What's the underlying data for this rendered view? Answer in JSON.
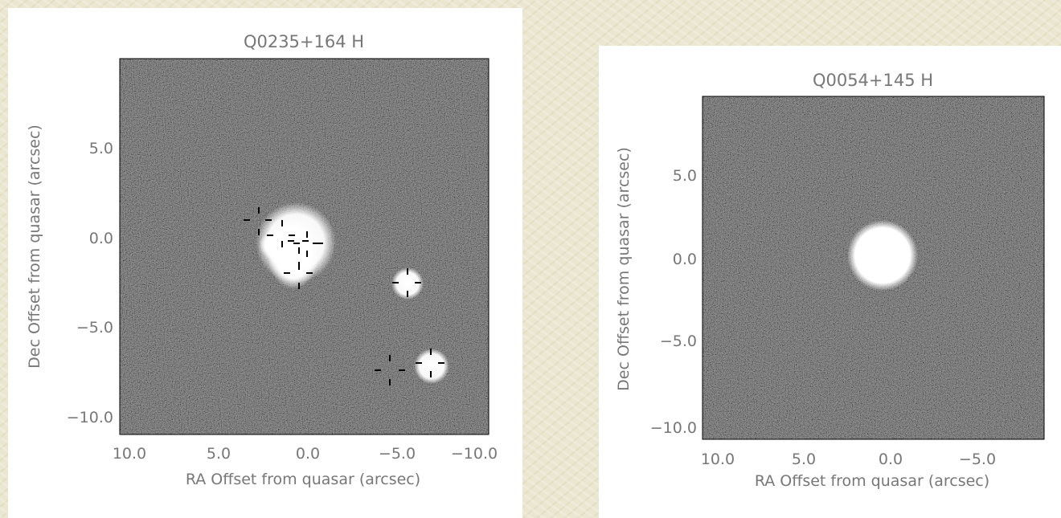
{
  "colors": {
    "background": "#ebe6cf",
    "panel": "#ffffff",
    "image_gray": "#555555",
    "text": "#777777",
    "marker": "#000000"
  },
  "panels": [
    {
      "title": "Q0235+164 H",
      "xlabel": "RA Offset from quasar (arcsec)",
      "ylabel": "Dec Offset from quasar (arcsec)",
      "xticks": [
        "10.0",
        "5.0",
        "0.0",
        "−5.0",
        "−10.0"
      ],
      "yticks": [
        "5.0",
        "0.0",
        "−5.0",
        "−10.0"
      ]
    },
    {
      "title": "Q0054+145 H",
      "xlabel": "RA Offset from quasar (arcsec)",
      "ylabel": "Dec Offset from quasar (arcsec)",
      "xticks": [
        "10.0",
        "5.0",
        "0.0",
        "−5.0"
      ],
      "yticks": [
        "5.0",
        "0.0",
        "−5.0",
        "−10.0"
      ]
    }
  ]
}
